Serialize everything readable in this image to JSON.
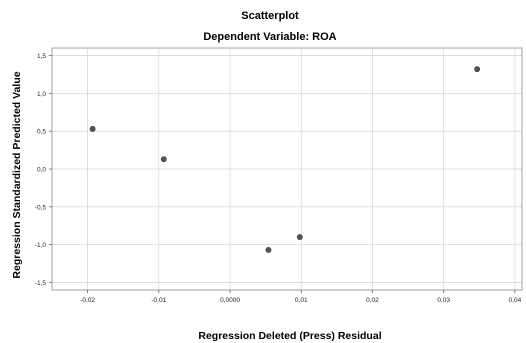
{
  "chart_data": {
    "type": "scatter",
    "title": "Scatterplot",
    "subtitle": "Dependent Variable: ROA",
    "xlabel": "Regression Deleted (Press) Residual",
    "ylabel": "Regression Standardized Predicted Value",
    "xlim": [
      -0.025,
      0.041
    ],
    "ylim": [
      -1.6,
      1.6
    ],
    "x_ticks": [
      -0.02,
      -0.01,
      0.0,
      0.01,
      0.02,
      0.03,
      0.04
    ],
    "x_tick_labels": [
      "-0,02",
      "-0,01",
      "0,0000",
      "0,01",
      "0,02",
      "0,03",
      "0,04"
    ],
    "y_ticks": [
      1.5,
      1.0,
      0.5,
      0.0,
      -0.5,
      -1.0,
      -1.5
    ],
    "y_tick_labels": [
      "1,5",
      "1,0",
      "0,5",
      "0,0",
      "-0,5",
      "-1,0",
      "-1,5"
    ],
    "grid": true,
    "point_color": "#555555",
    "points": [
      {
        "x": -0.0193,
        "y": 0.53
      },
      {
        "x": -0.0093,
        "y": 0.13
      },
      {
        "x": 0.0054,
        "y": -1.07
      },
      {
        "x": 0.0098,
        "y": -0.9
      },
      {
        "x": 0.0347,
        "y": 1.32
      }
    ]
  }
}
